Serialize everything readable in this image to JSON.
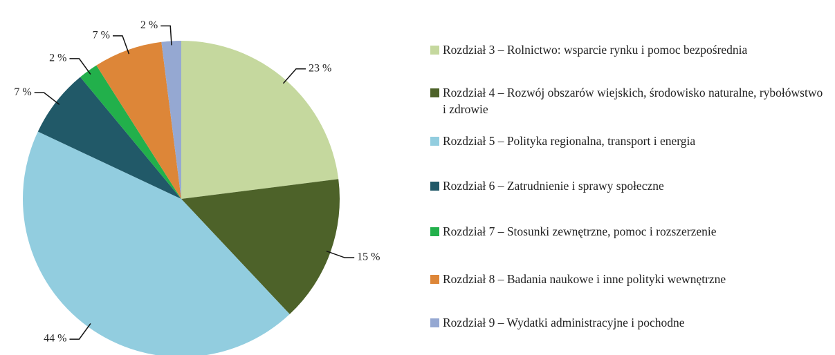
{
  "chart_data": {
    "type": "pie",
    "categories": [
      "Rozdział 3 – Rolnictwo: wsparcie rynku i pomoc bezpośrednia",
      "Rozdział 4 – Rozwój obszarów wiejskich, środowisko naturalne, rybołówstwo i zdrowie",
      "Rozdział 5 – Polityka regionalna, transport i energia",
      "Rozdział 6 – Zatrudnienie i sprawy społeczne",
      "Rozdział 7 – Stosunki zewnętrzne, pomoc i rozszerzenie",
      "Rozdział 8 – Badania naukowe i inne polityki wewnętrzne",
      "Rozdział 9 – Wydatki administracyjne i pochodne"
    ],
    "values": [
      23,
      15,
      44,
      7,
      2,
      7,
      2
    ],
    "value_labels": [
      "23 %",
      "15 %",
      "44 %",
      "7 %",
      "2 %",
      "7 %",
      "2 %"
    ],
    "colors": [
      "#c5d89e",
      "#4d6229",
      "#92cddf",
      "#215968",
      "#22b04b",
      "#dd8638",
      "#95a8d2"
    ],
    "legend": "right"
  }
}
